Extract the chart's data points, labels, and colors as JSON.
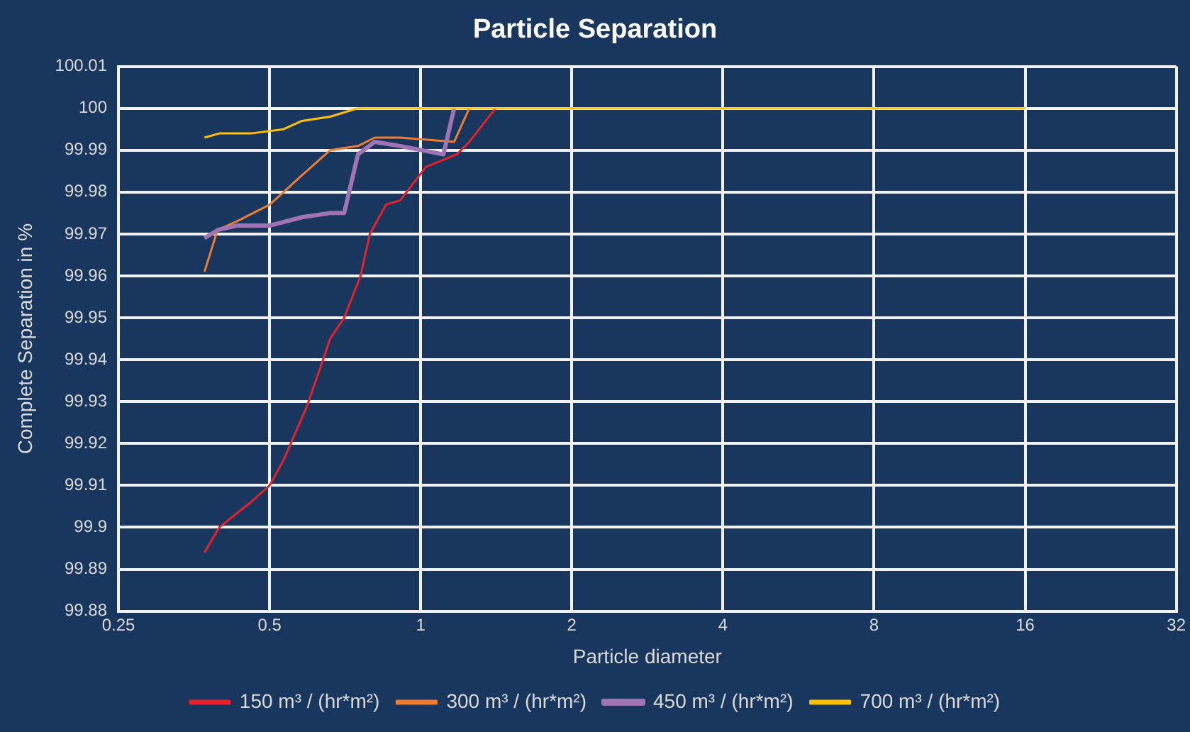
{
  "chart_data": {
    "type": "line",
    "title": "Particle Separation",
    "xlabel": "Particle diameter",
    "ylabel": "Complete Separation in %",
    "log": "x",
    "xlim": [
      0.25,
      32
    ],
    "xticks": [
      0.25,
      0.5,
      1,
      2,
      4,
      8,
      16,
      32
    ],
    "ylim": [
      99.88,
      100.01
    ],
    "yticks": [
      99.88,
      99.89,
      99.9,
      99.91,
      99.92,
      99.93,
      99.94,
      99.95,
      99.96,
      99.97,
      99.98,
      99.99,
      100,
      100.01
    ],
    "grid": true,
    "legend": "bottom",
    "marker": "none",
    "line_style": "solid",
    "series": [
      {
        "name": "150 m³ / (hr*m²)",
        "color": "#e8202a",
        "x": [
          0.371,
          0.397,
          0.459,
          0.5,
          0.533,
          0.594,
          0.639,
          0.66,
          0.704,
          0.759,
          0.792,
          0.853,
          0.91,
          1.024,
          1.18,
          1.25,
          1.41
        ],
        "values": [
          99.894,
          99.9,
          99.906,
          99.91,
          99.916,
          99.929,
          99.94,
          99.945,
          99.95,
          99.96,
          99.97,
          99.977,
          99.978,
          99.986,
          99.989,
          99.992,
          100
        ]
      },
      {
        "name": "300 m³ / (hr*m²)",
        "color": "#ed7d31",
        "x": [
          0.371,
          0.394,
          0.43,
          0.5,
          0.533,
          0.58,
          0.619,
          0.66,
          0.75,
          0.81,
          0.91,
          1.166,
          1.25
        ],
        "values": [
          99.961,
          99.971,
          99.973,
          99.977,
          99.98,
          99.984,
          99.987,
          99.99,
          99.991,
          99.993,
          99.993,
          99.992,
          100
        ]
      },
      {
        "name": "450 m³ / (hr*m²)",
        "color": "#a074b4",
        "x": [
          0.371,
          0.395,
          0.43,
          0.5,
          0.58,
          0.66,
          0.704,
          0.75,
          0.81,
          0.91,
          1.11,
          1.166
        ],
        "values": [
          99.969,
          99.971,
          99.972,
          99.972,
          99.974,
          99.975,
          99.975,
          99.989,
          99.992,
          99.991,
          99.989,
          100
        ]
      },
      {
        "name": "700 m³ / (hr*m²)",
        "color": "#ffc000",
        "x": [
          0.371,
          0.397,
          0.459,
          0.533,
          0.58,
          0.66,
          0.75,
          16
        ],
        "values": [
          99.993,
          99.994,
          99.994,
          99.995,
          99.997,
          99.998,
          100,
          100
        ]
      }
    ]
  }
}
